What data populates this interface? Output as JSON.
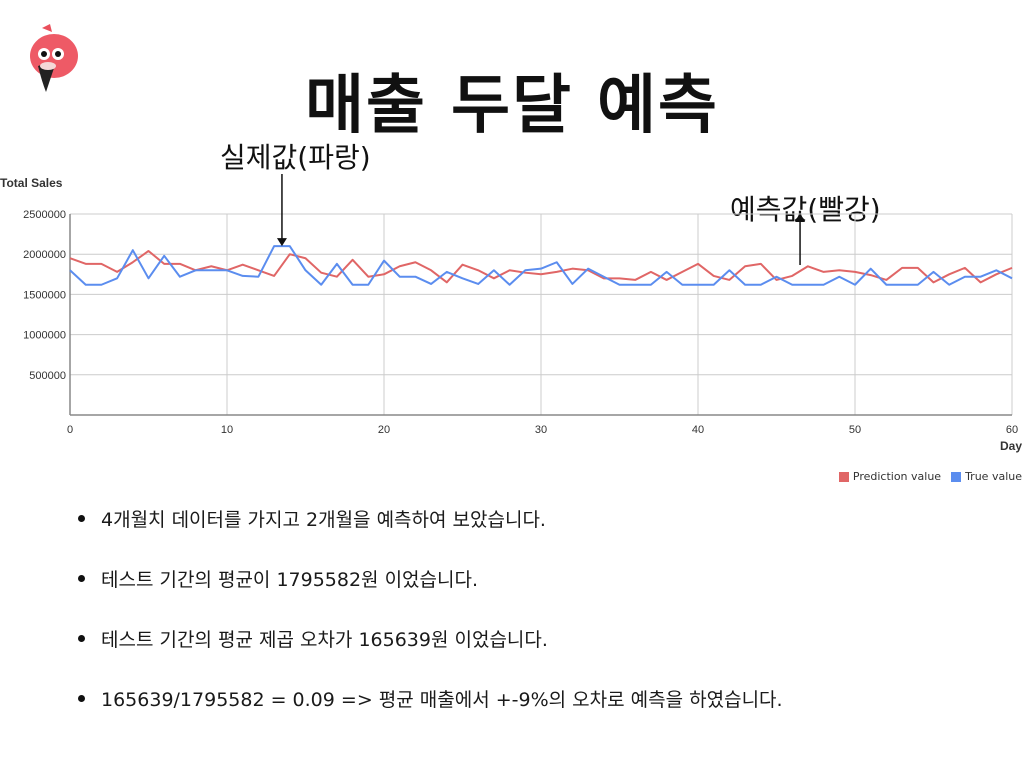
{
  "slide": {
    "title": "매출 두달 예측",
    "annotation_true": "실제값(파랑)",
    "annotation_pred": "예측값(빨강)",
    "bullets": [
      "4개월치 데이터를 가지고 2개월을 예측하여 보았습니다.",
      "테스트 기간의 평균이 1795582원 이었습니다.",
      "테스트 기간의 평균 제곱 오차가 165639원 이었습니다.",
      "165639/1795582 = 0.09 => 평균 매출에서 +-9%의 오차로 예측을 하였습니다."
    ]
  },
  "colors": {
    "prediction": "#e06666",
    "true": "#5b8def",
    "grid": "#cccccc",
    "axis": "#888888"
  },
  "chart_data": {
    "type": "line",
    "title": "",
    "ylabel": "Total Sales",
    "xlabel": "Day",
    "xlim": [
      0,
      60
    ],
    "ylim": [
      0,
      2500000
    ],
    "xticks": [
      "0",
      "10",
      "20",
      "30",
      "40",
      "50",
      "60"
    ],
    "yticks": [
      "500000",
      "1000000",
      "1500000",
      "2000000",
      "2500000"
    ],
    "x": [
      0,
      1,
      2,
      3,
      4,
      5,
      6,
      7,
      8,
      9,
      10,
      11,
      12,
      13,
      14,
      15,
      16,
      17,
      18,
      19,
      20,
      21,
      22,
      23,
      24,
      25,
      26,
      27,
      28,
      29,
      30,
      31,
      32,
      33,
      34,
      35,
      36,
      37,
      38,
      39,
      40,
      41,
      42,
      43,
      44,
      45,
      46,
      47,
      48,
      49,
      50,
      51,
      52,
      53,
      54,
      55,
      56,
      57,
      58,
      59,
      60
    ],
    "series": [
      {
        "name": "Prediction value",
        "values": [
          1950000,
          1880000,
          1880000,
          1780000,
          1900000,
          2040000,
          1880000,
          1880000,
          1800000,
          1850000,
          1800000,
          1870000,
          1800000,
          1730000,
          2000000,
          1950000,
          1770000,
          1720000,
          1930000,
          1720000,
          1750000,
          1850000,
          1900000,
          1800000,
          1650000,
          1870000,
          1800000,
          1700000,
          1800000,
          1770000,
          1750000,
          1780000,
          1820000,
          1800000,
          1700000,
          1700000,
          1680000,
          1780000,
          1680000,
          1780000,
          1880000,
          1730000,
          1680000,
          1850000,
          1880000,
          1680000,
          1730000,
          1850000,
          1780000,
          1800000,
          1780000,
          1740000,
          1680000,
          1830000,
          1830000,
          1650000,
          1750000,
          1830000,
          1650000,
          1750000,
          1830000
        ]
      },
      {
        "name": "True value",
        "values": [
          1800000,
          1620000,
          1620000,
          1700000,
          2050000,
          1700000,
          1980000,
          1720000,
          1800000,
          1800000,
          1800000,
          1730000,
          1720000,
          2100000,
          2100000,
          1800000,
          1620000,
          1880000,
          1620000,
          1620000,
          1920000,
          1720000,
          1720000,
          1630000,
          1780000,
          1700000,
          1630000,
          1800000,
          1620000,
          1800000,
          1820000,
          1900000,
          1630000,
          1820000,
          1720000,
          1620000,
          1620000,
          1620000,
          1780000,
          1620000,
          1620000,
          1620000,
          1800000,
          1620000,
          1620000,
          1720000,
          1620000,
          1620000,
          1620000,
          1720000,
          1620000,
          1820000,
          1620000,
          1620000,
          1620000,
          1780000,
          1620000,
          1720000,
          1720000,
          1800000,
          1700000
        ]
      }
    ],
    "legend": "bottom-right",
    "grid": true
  }
}
